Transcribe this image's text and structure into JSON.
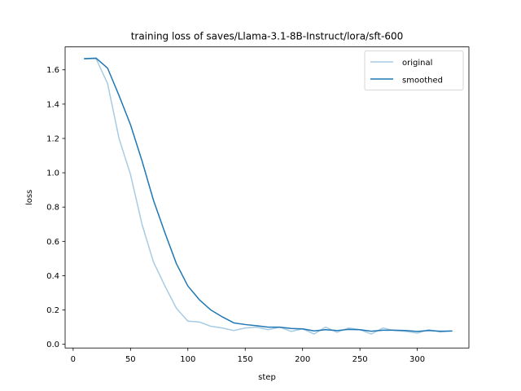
{
  "chart_data": {
    "type": "line",
    "title": "training loss of saves/Llama-3.1-8B-Instruct/lora/sft-600",
    "xlabel": "step",
    "ylabel": "loss",
    "xlim": [
      -7,
      345
    ],
    "ylim": [
      -0.0216,
      1.7336
    ],
    "xticks": [
      0,
      50,
      100,
      150,
      200,
      250,
      300
    ],
    "yticks": [
      0.0,
      0.2,
      0.4,
      0.6,
      0.8,
      1.0,
      1.2,
      1.4,
      1.6
    ],
    "ytick_labels": [
      "0.0",
      "0.2",
      "0.4",
      "0.6",
      "0.8",
      "1.0",
      "1.2",
      "1.4",
      "1.6"
    ],
    "grid": false,
    "legend_position": "top-right",
    "x": [
      10,
      20,
      30,
      40,
      50,
      60,
      70,
      80,
      90,
      100,
      110,
      120,
      130,
      140,
      150,
      160,
      170,
      180,
      190,
      200,
      210,
      220,
      230,
      240,
      250,
      260,
      270,
      280,
      290,
      300,
      310,
      320,
      330
    ],
    "series": [
      {
        "name": "original",
        "color": "#a6cbe3",
        "values": [
          1.665,
          1.665,
          1.52,
          1.2,
          0.99,
          0.7,
          0.48,
          0.34,
          0.21,
          0.135,
          0.13,
          0.105,
          0.095,
          0.08,
          0.095,
          0.1,
          0.085,
          0.1,
          0.075,
          0.09,
          0.06,
          0.1,
          0.07,
          0.095,
          0.085,
          0.06,
          0.095,
          0.08,
          0.075,
          0.065,
          0.085,
          0.072,
          0.078
        ]
      },
      {
        "name": "smoothed",
        "color": "#1f77b4",
        "values": [
          1.665,
          1.668,
          1.61,
          1.45,
          1.28,
          1.07,
          0.84,
          0.65,
          0.47,
          0.34,
          0.26,
          0.2,
          0.16,
          0.125,
          0.115,
          0.108,
          0.1,
          0.1,
          0.092,
          0.09,
          0.078,
          0.085,
          0.08,
          0.087,
          0.085,
          0.076,
          0.082,
          0.082,
          0.08,
          0.075,
          0.08,
          0.076,
          0.077
        ]
      }
    ]
  }
}
